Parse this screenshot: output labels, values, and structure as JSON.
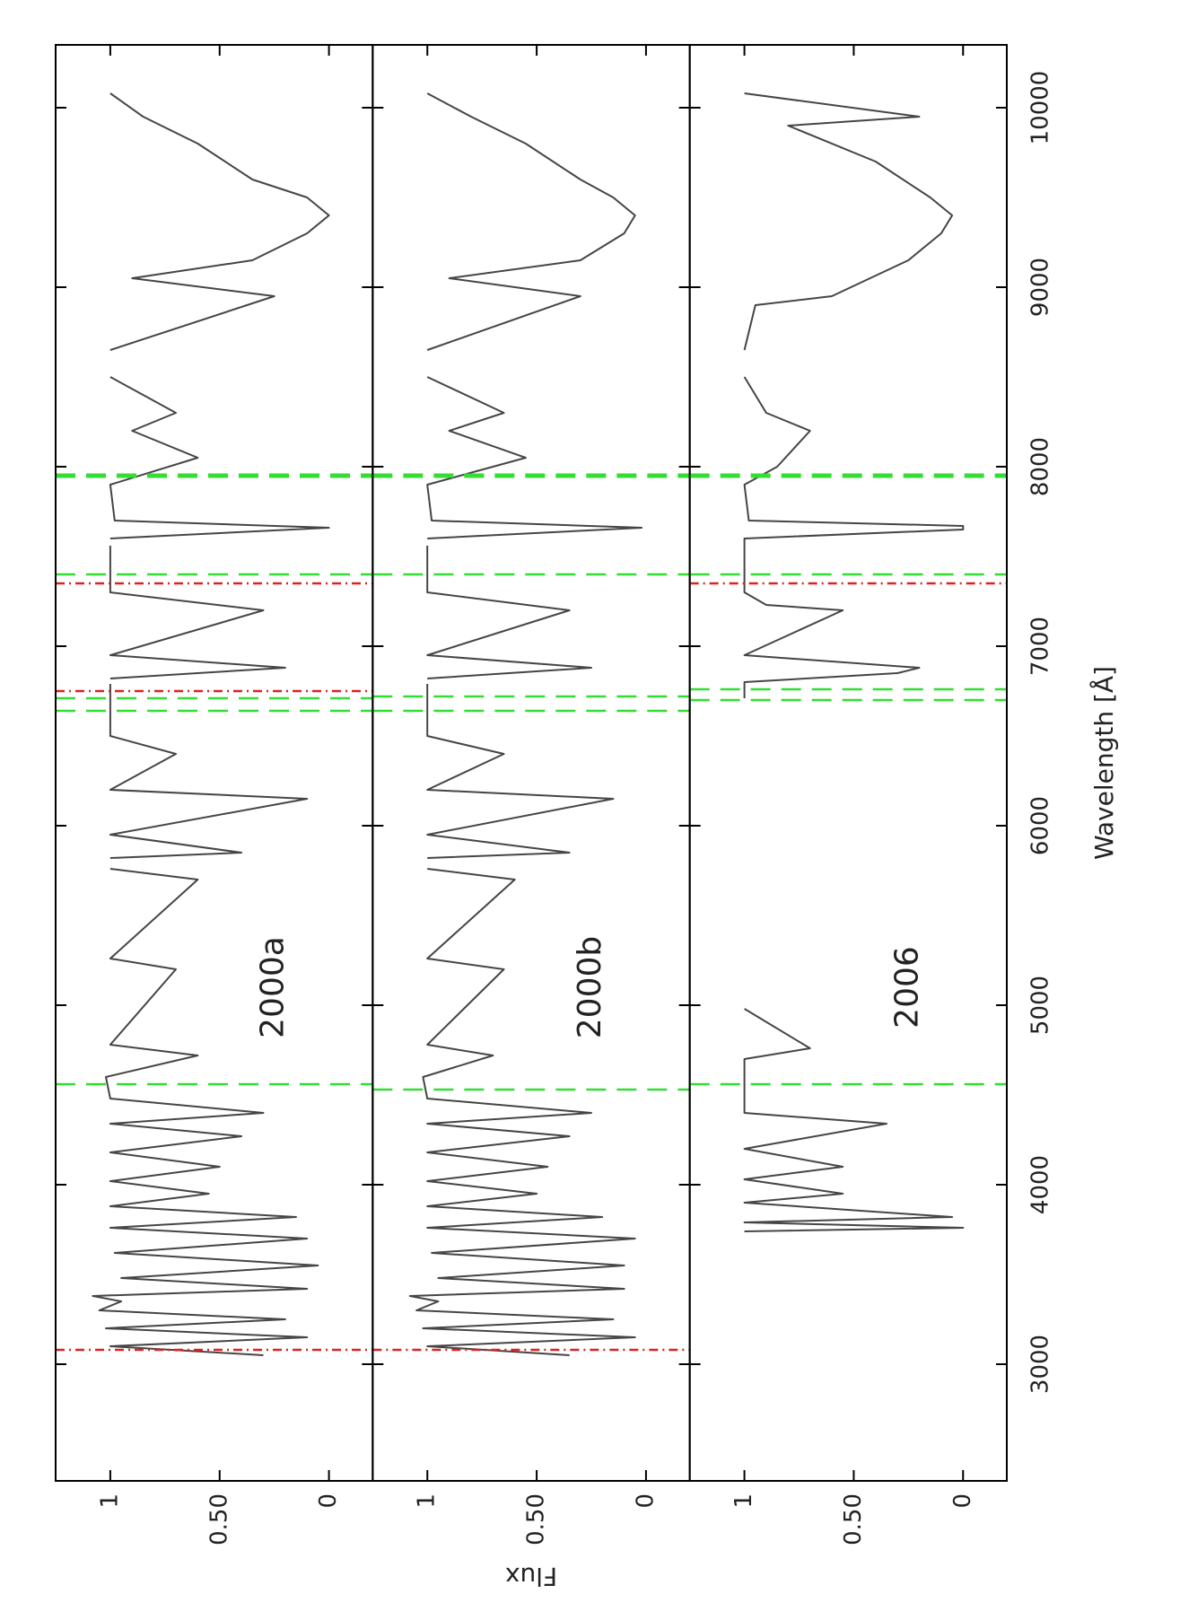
{
  "chart_data": [
    {
      "type": "line",
      "color": "#454545",
      "xlim": [
        2350,
        10350
      ],
      "ylim": [
        -0.2,
        1.25
      ],
      "yticks": [
        0,
        {
          "value": 0.5,
          "label": "0.50"
        },
        1
      ],
      "annotations": [
        {
          "text": "2000a",
          "x": 5100,
          "y": 0.25
        }
      ],
      "x": [
        3050,
        3100,
        3150,
        3200,
        3250,
        3300,
        3350,
        3380,
        3420,
        3480,
        3550,
        3620,
        3700,
        3760,
        3820,
        3880,
        3950,
        4020,
        4100,
        4180,
        4270,
        4340,
        4400,
        4480,
        4600,
        4720,
        4780,
        5200,
        5260,
        5700,
        5760,
        5790,
        5820,
        5850,
        5950,
        6150,
        6200,
        6400,
        6500,
        6790,
        6800,
        6820,
        6880,
        6950,
        7200,
        7300,
        7560,
        7580,
        7600,
        7660,
        7700,
        7900,
        8050,
        8200,
        8300,
        8500,
        8580,
        8650,
        8950,
        9050,
        9150,
        9300,
        9400,
        9500,
        9600,
        9800,
        9950,
        10080
      ],
      "values": [
        0.3,
        1.0,
        0.1,
        1.02,
        0.2,
        1.05,
        0.95,
        1.08,
        0.1,
        0.95,
        0.05,
        0.98,
        0.1,
        1.0,
        0.15,
        1.0,
        0.55,
        1.0,
        0.5,
        1.0,
        0.4,
        1.0,
        0.3,
        1.0,
        1.02,
        0.6,
        1.0,
        0.7,
        1.0,
        0.6,
        1.0,
        null,
        1.0,
        0.4,
        1.0,
        0.1,
        1.0,
        0.7,
        1.0,
        1.0,
        null,
        1.0,
        0.2,
        1.0,
        0.3,
        1.0,
        1.0,
        null,
        1.0,
        0.0,
        0.98,
        1.0,
        0.6,
        0.9,
        0.7,
        1.0,
        null,
        1.0,
        0.25,
        0.9,
        0.35,
        0.1,
        0.0,
        0.1,
        0.35,
        0.6,
        0.85,
        1.0
      ],
      "vlines": [
        {
          "x": 3080,
          "color": "#dd2222",
          "style": "dashdot"
        },
        {
          "x": 4560,
          "color": "#33dd33",
          "style": "dashed"
        },
        {
          "x": 6640,
          "color": "#33dd33",
          "style": "dashed"
        },
        {
          "x": 6710,
          "color": "#33dd33",
          "style": "dashed"
        },
        {
          "x": 6750,
          "color": "#dd2222",
          "style": "dashdot"
        },
        {
          "x": 7350,
          "color": "#dd2222",
          "style": "dashdot"
        },
        {
          "x": 7400,
          "color": "#33dd33",
          "style": "dashed"
        },
        {
          "x": 7950,
          "color": "#33dd33",
          "style": "dashed",
          "width": 5
        }
      ]
    },
    {
      "type": "line",
      "color": "#454545",
      "xlim": [
        2350,
        10350
      ],
      "ylim": [
        -0.2,
        1.25
      ],
      "yticks": [
        0,
        {
          "value": 0.5,
          "label": "0.50"
        },
        1
      ],
      "ylabel": "Flux",
      "annotations": [
        {
          "text": "2000b",
          "x": 5100,
          "y": 0.25
        }
      ],
      "x": [
        3050,
        3100,
        3150,
        3200,
        3250,
        3300,
        3350,
        3380,
        3420,
        3480,
        3550,
        3620,
        3700,
        3760,
        3820,
        3880,
        3950,
        4020,
        4100,
        4180,
        4270,
        4340,
        4400,
        4480,
        4600,
        4720,
        4780,
        5200,
        5260,
        5700,
        5760,
        5790,
        5820,
        5850,
        5950,
        6150,
        6200,
        6400,
        6500,
        6790,
        6800,
        6820,
        6880,
        6950,
        7200,
        7300,
        7560,
        7580,
        7600,
        7660,
        7700,
        7900,
        8050,
        8200,
        8300,
        8500,
        8580,
        8650,
        8950,
        9050,
        9150,
        9300,
        9400,
        9500,
        9600,
        9800,
        9950,
        10080
      ],
      "values": [
        0.35,
        1.0,
        0.05,
        1.02,
        0.15,
        1.05,
        0.95,
        1.08,
        0.1,
        0.95,
        0.1,
        0.98,
        0.05,
        1.0,
        0.2,
        1.0,
        0.5,
        1.0,
        0.45,
        1.0,
        0.35,
        1.0,
        0.25,
        1.0,
        1.02,
        0.7,
        1.0,
        0.65,
        1.0,
        0.6,
        1.0,
        null,
        1.0,
        0.35,
        1.0,
        0.15,
        1.0,
        0.65,
        1.0,
        1.0,
        null,
        1.0,
        0.25,
        1.0,
        0.35,
        1.0,
        1.0,
        null,
        1.0,
        0.02,
        0.98,
        1.0,
        0.55,
        0.9,
        0.65,
        1.0,
        null,
        1.0,
        0.3,
        0.9,
        0.3,
        0.1,
        0.05,
        0.15,
        0.3,
        0.55,
        0.8,
        1.0
      ],
      "vlines": [
        {
          "x": 3080,
          "color": "#dd2222",
          "style": "dashdot"
        },
        {
          "x": 4530,
          "color": "#33dd33",
          "style": "dashed"
        },
        {
          "x": 6640,
          "color": "#33dd33",
          "style": "dashed"
        },
        {
          "x": 6720,
          "color": "#33dd33",
          "style": "dashed"
        },
        {
          "x": 7400,
          "color": "#33dd33",
          "style": "dashed"
        },
        {
          "x": 7950,
          "color": "#33dd33",
          "style": "dashed",
          "width": 5
        }
      ]
    },
    {
      "type": "line",
      "color": "#454545",
      "xlim": [
        2350,
        10350
      ],
      "ylim": [
        -0.2,
        1.25
      ],
      "yticks": [
        0,
        {
          "value": 0.5,
          "label": "0.50"
        },
        1
      ],
      "xticks": [
        3000,
        4000,
        5000,
        6000,
        7000,
        8000,
        9000,
        10000
      ],
      "xlabel": "Wavelength [Å]",
      "annotations": [
        {
          "text": "2006",
          "x": 5100,
          "y": 0.25
        }
      ],
      "x": [
        3740,
        3760,
        3790,
        3820,
        3900,
        3950,
        4030,
        4100,
        4200,
        4340,
        4400,
        4700,
        4760,
        4980,
        5000,
        6710,
        6720,
        6800,
        6850,
        6880,
        6950,
        7200,
        7230,
        7300,
        7580,
        7600,
        7650,
        7670,
        7700,
        7900,
        8000,
        8200,
        8300,
        8500,
        8580,
        8650,
        8900,
        8950,
        9150,
        9300,
        9400,
        9500,
        9700,
        9900,
        9950,
        10080
      ],
      "values": [
        1.0,
        0.0,
        1.0,
        0.05,
        1.0,
        0.55,
        1.0,
        0.55,
        1.0,
        0.35,
        1.0,
        1.0,
        0.7,
        1.0,
        null,
        1.0,
        1.0,
        1.0,
        0.3,
        0.2,
        1.0,
        0.55,
        0.9,
        1.0,
        1.0,
        1.0,
        0.0,
        0.0,
        0.98,
        1.0,
        0.85,
        0.7,
        0.9,
        1.0,
        null,
        1.0,
        0.95,
        0.6,
        0.25,
        0.1,
        0.05,
        0.15,
        0.4,
        0.8,
        0.2,
        1.0
      ],
      "vlines": [
        {
          "x": 4560,
          "color": "#33dd33",
          "style": "dashed"
        },
        {
          "x": 6700,
          "color": "#33dd33",
          "style": "dashed"
        },
        {
          "x": 6760,
          "color": "#33dd33",
          "style": "dashed"
        },
        {
          "x": 7350,
          "color": "#dd2222",
          "style": "dashdot"
        },
        {
          "x": 7400,
          "color": "#33dd33",
          "style": "dashed"
        },
        {
          "x": 7950,
          "color": "#33dd33",
          "style": "dashed",
          "width": 5
        }
      ]
    }
  ]
}
